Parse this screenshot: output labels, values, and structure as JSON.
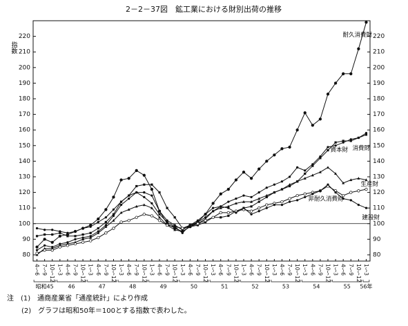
{
  "chart_data": {
    "type": "line",
    "title": "2－2－37図　鉱工業における財別出荷の推移",
    "y_label": "指数",
    "categories": [
      "4〜6",
      "7〜9",
      "10〜12",
      "1〜3",
      "4〜6",
      "7〜9",
      "10〜12",
      "1〜3",
      "4〜6",
      "7〜9",
      "10〜12",
      "1〜3",
      "4〜6",
      "7〜9",
      "10〜12",
      "1〜3",
      "4〜6",
      "7〜9",
      "10〜12",
      "1〜3",
      "4〜6",
      "7〜9",
      "10〜12",
      "1〜3",
      "4〜6",
      "7〜9",
      "10〜12",
      "1〜3",
      "4〜6",
      "7〜9",
      "10〜12",
      "1〜3",
      "4〜6",
      "7〜9",
      "10〜12",
      "1〜3",
      "4〜6",
      "7〜9",
      "10〜12",
      "1〜3",
      "4〜6",
      "7〜9",
      "10〜12",
      "1〜3"
    ],
    "year_labels": [
      "昭和45",
      "46",
      "47",
      "48",
      "49",
      "50",
      "51",
      "52",
      "53",
      "54",
      "55",
      "56年"
    ],
    "series": [
      {
        "name": "耐久消費財",
        "color": "#111111",
        "values": [
          85,
          90,
          88,
          92,
          93,
          95,
          97,
          99,
          103,
          109,
          117,
          128,
          129,
          134,
          131,
          122,
          108,
          100,
          97,
          95,
          98,
          101,
          106,
          113,
          119,
          122,
          128,
          133,
          129,
          135,
          140,
          144,
          148,
          149,
          160,
          171,
          163,
          167,
          183,
          190,
          196,
          196,
          212,
          229
        ]
      },
      {
        "name": "消費財",
        "color": "#111111",
        "values": [
          83,
          86,
          85,
          87,
          88,
          90,
          91,
          92,
          95,
          99,
          105,
          112,
          116,
          120,
          120,
          118,
          108,
          102,
          99,
          96,
          99,
          101,
          104,
          108,
          111,
          114,
          116,
          118,
          117,
          120,
          123,
          125,
          127,
          130,
          136,
          134,
          138,
          143,
          149,
          150,
          152,
          154,
          155,
          158
        ]
      },
      {
        "name": "資本財",
        "color": "#111111",
        "values": [
          92,
          93,
          93,
          94,
          92,
          92,
          93,
          94,
          97,
          101,
          106,
          114,
          118,
          124,
          125,
          125,
          120,
          110,
          104,
          97,
          98,
          99,
          101,
          104,
          104,
          105,
          108,
          110,
          111,
          114,
          117,
          120,
          122,
          124,
          127,
          132,
          137,
          142,
          147,
          152,
          153,
          153,
          155,
          157
        ]
      },
      {
        "name": "生産財",
        "color": "#111111",
        "values": [
          80,
          84,
          84,
          86,
          87,
          88,
          90,
          91,
          94,
          98,
          102,
          107,
          109,
          111,
          112,
          110,
          104,
          99,
          96,
          95,
          98,
          100,
          103,
          108,
          110,
          111,
          113,
          114,
          114,
          116,
          118,
          120,
          122,
          125,
          127,
          129,
          131,
          133,
          136,
          132,
          126,
          128,
          129,
          128
        ]
      },
      {
        "name": "非耐久消費財",
        "color": "#111111",
        "values": [
          81,
          83,
          83,
          85,
          86,
          87,
          88,
          89,
          91,
          94,
          97,
          101,
          102,
          104,
          106,
          105,
          102,
          99,
          98,
          97,
          99,
          100,
          102,
          104,
          107,
          107,
          108,
          109,
          108,
          110,
          112,
          113,
          114,
          116,
          118,
          119,
          120,
          121,
          124,
          121,
          118,
          120,
          121,
          122
        ]
      },
      {
        "name": "建設財",
        "color": "#111111",
        "values": [
          97,
          96,
          96,
          95,
          94,
          95,
          97,
          98,
          101,
          104,
          109,
          114,
          118,
          120,
          117,
          113,
          106,
          101,
          98,
          94,
          99,
          102,
          106,
          110,
          111,
          110,
          107,
          110,
          106,
          108,
          110,
          112,
          112,
          114,
          115,
          117,
          119,
          121,
          125,
          120,
          116,
          115,
          112,
          110
        ]
      }
    ],
    "ylim": [
      76,
      230
    ],
    "yticks": [
      80,
      90,
      100,
      110,
      120,
      130,
      140,
      150,
      160,
      170,
      180,
      190,
      200,
      210,
      220
    ],
    "reference_line": 100,
    "notes": [
      "注　(1)　通商産業省「通産統計」により作成",
      "(2)　グラフは昭和50年＝100とする指数で表わした。"
    ]
  }
}
